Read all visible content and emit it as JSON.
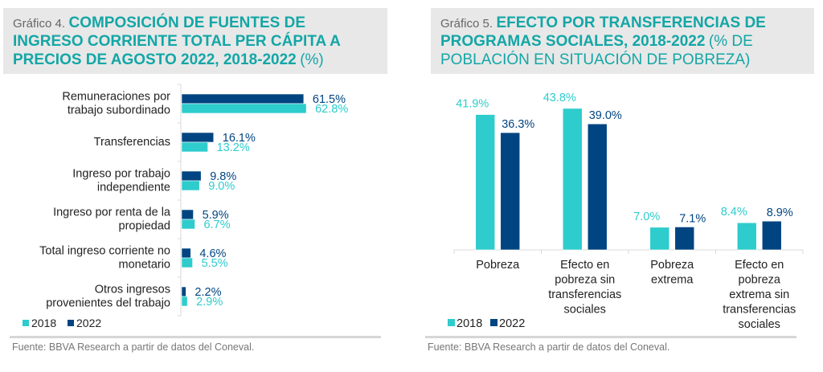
{
  "colors": {
    "c2018": "#2ecccc",
    "c2022": "#004481",
    "title": "#14a6a6",
    "axis": "#d9d9d9",
    "label": "#222222"
  },
  "chart_data": [
    {
      "type": "bar",
      "orientation": "horizontal",
      "title_prefix": "Gráfico 4.",
      "title": "COMPOSICIÓN DE FUENTES DE INGRESO CORRIENTE TOTAL PER CÁPITA A PRECIOS DE AGOSTO 2022, 2018-2022",
      "title_unit": "(%)",
      "categories": [
        [
          "Remuneraciones por",
          "trabajo subordinado"
        ],
        [
          "Transferencias"
        ],
        [
          "Ingreso por trabajo",
          "independiente"
        ],
        [
          "Ingreso por renta de la",
          "propiedad"
        ],
        [
          "Total ingreso corriente no",
          "monetario"
        ],
        [
          "Otros ingresos",
          "provenientes del trabajo"
        ]
      ],
      "series": [
        {
          "name": "2022",
          "values": [
            61.5,
            16.1,
            9.8,
            5.9,
            4.6,
            2.2
          ],
          "labels": [
            "61.5%",
            "16.1%",
            "9.8%",
            "5.9%",
            "4.6%",
            "2.2%"
          ]
        },
        {
          "name": "2018",
          "values": [
            62.8,
            13.2,
            9.0,
            6.7,
            5.5,
            2.9
          ],
          "labels": [
            "62.8%",
            "13.2%",
            "9.0%",
            "6.7%",
            "5.5%",
            "2.9%"
          ]
        }
      ],
      "legend": [
        "2018",
        "2022"
      ],
      "legend_position": "bottom-left",
      "xlim": [
        0,
        100
      ],
      "grid": false,
      "source": "Fuente: BBVA Research a partir de datos del Coneval."
    },
    {
      "type": "bar",
      "orientation": "vertical",
      "title_prefix": "Gráfico 5.",
      "title": "EFECTO POR TRANSFERENCIAS DE PROGRAMAS SOCIALES, 2018-2022",
      "title_unit": "(% DE POBLACIÓN EN SITUACIÓN DE POBREZA)",
      "categories": [
        [
          "Pobreza"
        ],
        [
          "Efecto en",
          "pobreza sin",
          "transferencias",
          "sociales"
        ],
        [
          "Pobreza",
          "extrema"
        ],
        [
          "Efecto en",
          "pobreza",
          "extrema sin",
          "transferencias",
          "sociales"
        ]
      ],
      "series": [
        {
          "name": "2018",
          "values": [
            41.9,
            43.8,
            7.0,
            8.4
          ],
          "labels": [
            "41.9%",
            "43.8%",
            "7.0%",
            "8.4%"
          ]
        },
        {
          "name": "2022",
          "values": [
            36.3,
            39.0,
            7.1,
            8.9
          ],
          "labels": [
            "36.3%",
            "39.0%",
            "7.1%",
            "8.9%"
          ]
        }
      ],
      "legend": [
        "2018",
        "2022"
      ],
      "legend_position": "bottom-left",
      "ylim": [
        0,
        45
      ],
      "grid": false,
      "source": "Fuente: BBVA Research a partir de datos del Coneval."
    }
  ]
}
